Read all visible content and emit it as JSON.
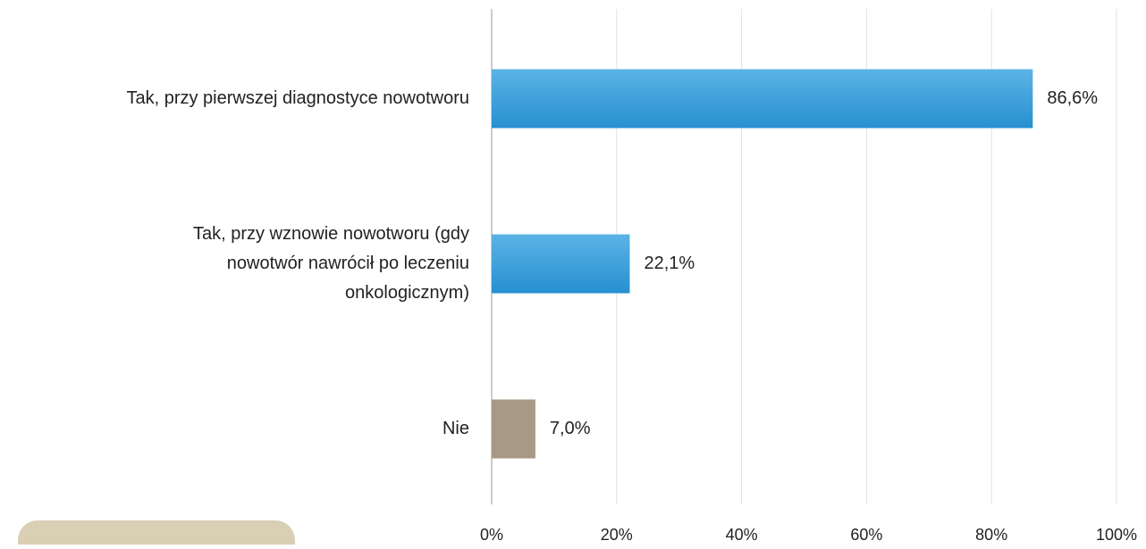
{
  "chart_data": {
    "type": "hbar",
    "categories": [
      [
        "Tak, przy pierwszej diagnostyce nowotworu"
      ],
      [
        "Tak, przy wznowie nowotworu (gdy",
        "nowotwór nawrócił po leczeniu",
        "onkologicznym)"
      ],
      [
        "Nie"
      ]
    ],
    "values": [
      86.6,
      22.1,
      7.0
    ],
    "value_labels": [
      "86,6%",
      "22,1%",
      "7,0%"
    ],
    "colors": [
      "#2e9ad6",
      "#2e9ad6",
      "#a89984"
    ],
    "xlim": [
      0,
      100
    ],
    "xticks": [
      {
        "value": 0,
        "label": "0%"
      },
      {
        "value": 20,
        "label": "20%"
      },
      {
        "value": 40,
        "label": "40%"
      },
      {
        "value": 60,
        "label": "60%"
      },
      {
        "value": 80,
        "label": "80%"
      },
      {
        "value": 100,
        "label": "100%"
      }
    ],
    "grid": true
  }
}
